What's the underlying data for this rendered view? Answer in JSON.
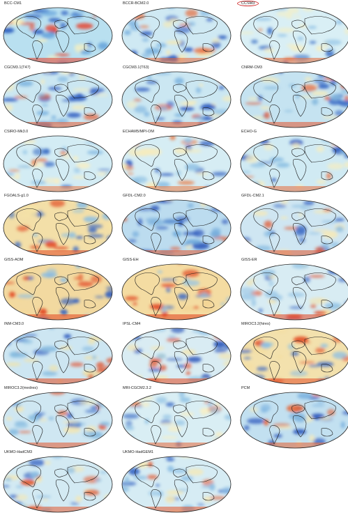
{
  "panels": [
    {
      "label": "BCC-CM1",
      "bg": "#b9e0f0",
      "blobs": [
        [
          "#2d5fc0",
          0.35
        ],
        [
          "#f6efbf",
          0.2
        ],
        [
          "#e8402a",
          0.25
        ],
        [
          "#6aa6dc",
          0.2
        ]
      ]
    },
    {
      "label": "BCCR-BCM2.0",
      "bg": "#cfe9f3",
      "blobs": [
        [
          "#2f5dbf",
          0.3
        ],
        [
          "#f3e9b8",
          0.3
        ],
        [
          "#e86a3a",
          0.15
        ],
        [
          "#7db3e0",
          0.25
        ]
      ]
    },
    {
      "label": "CCSM3",
      "bg": "#d9eff5",
      "blobs": [
        [
          "#3b6fc6",
          0.2
        ],
        [
          "#f5efc4",
          0.4
        ],
        [
          "#e46a38",
          0.1
        ],
        [
          "#93c3e6",
          0.3
        ]
      ],
      "circled": true
    },
    {
      "label": "CGCM3.1(T47)",
      "bg": "#cbe7f2",
      "blobs": [
        [
          "#2e5cbf",
          0.35
        ],
        [
          "#f4ecc0",
          0.25
        ],
        [
          "#e65a30",
          0.1
        ],
        [
          "#7fb5e0",
          0.3
        ]
      ]
    },
    {
      "label": "CGCM3.1(T63)",
      "bg": "#cbe7f2",
      "blobs": [
        [
          "#2e5cbf",
          0.35
        ],
        [
          "#f4ecc0",
          0.25
        ],
        [
          "#e65a30",
          0.1
        ],
        [
          "#7fb5e0",
          0.3
        ]
      ]
    },
    {
      "label": "CNRM-CM3",
      "bg": "#c5e3f1",
      "blobs": [
        [
          "#3768c4",
          0.3
        ],
        [
          "#f4ebbd",
          0.25
        ],
        [
          "#e4552c",
          0.2
        ],
        [
          "#86badf",
          0.25
        ]
      ]
    },
    {
      "label": "CSIRO-Mk3.0",
      "bg": "#d3ecf4",
      "blobs": [
        [
          "#3a6cc5",
          0.25
        ],
        [
          "#f6efc6",
          0.35
        ],
        [
          "#e97a45",
          0.1
        ],
        [
          "#8ec0e4",
          0.3
        ]
      ]
    },
    {
      "label": "ECHAM5/MPI-OM",
      "bg": "#d6edf4",
      "blobs": [
        [
          "#2f5ebf",
          0.25
        ],
        [
          "#f5ecbf",
          0.35
        ],
        [
          "#ea7840",
          0.15
        ],
        [
          "#8fc1e4",
          0.25
        ]
      ]
    },
    {
      "label": "ECHO-G",
      "bg": "#d0eaf3",
      "blobs": [
        [
          "#2c58bc",
          0.3
        ],
        [
          "#f5edc2",
          0.3
        ],
        [
          "#e86c3a",
          0.1
        ],
        [
          "#88bde2",
          0.3
        ]
      ]
    },
    {
      "label": "FGOALS-g1.0",
      "bg": "#f3dfa8",
      "blobs": [
        [
          "#3665c3",
          0.3
        ],
        [
          "#f5e3a6",
          0.25
        ],
        [
          "#e24a25",
          0.25
        ],
        [
          "#8cbfe3",
          0.2
        ]
      ]
    },
    {
      "label": "GFDL-CM2.0",
      "bg": "#bcdcef",
      "blobs": [
        [
          "#2a55b9",
          0.4
        ],
        [
          "#f3e7b5",
          0.15
        ],
        [
          "#e35a2f",
          0.15
        ],
        [
          "#6ea8da",
          0.3
        ]
      ]
    },
    {
      "label": "GFDL-CM2.1",
      "bg": "#cfe6f2",
      "blobs": [
        [
          "#3d6bc5",
          0.3
        ],
        [
          "#f4e9ba",
          0.3
        ],
        [
          "#e2552c",
          0.15
        ],
        [
          "#8dbfe3",
          0.25
        ]
      ]
    },
    {
      "label": "GISS-AOM",
      "bg": "#f2d9a0",
      "blobs": [
        [
          "#2f5ebf",
          0.25
        ],
        [
          "#f4d999",
          0.25
        ],
        [
          "#e2461f",
          0.3
        ],
        [
          "#8cbfe3",
          0.2
        ]
      ]
    },
    {
      "label": "GISS-EH",
      "bg": "#f4dca2",
      "blobs": [
        [
          "#3a68c4",
          0.2
        ],
        [
          "#f3d595",
          0.25
        ],
        [
          "#e0401d",
          0.35
        ],
        [
          "#94c4e5",
          0.2
        ]
      ]
    },
    {
      "label": "GISS-ER",
      "bg": "#d8ecf3",
      "blobs": [
        [
          "#3a68c4",
          0.25
        ],
        [
          "#f5e3a8",
          0.3
        ],
        [
          "#e2461f",
          0.2
        ],
        [
          "#95c4e5",
          0.25
        ]
      ]
    },
    {
      "label": "INM-CM3.0",
      "bg": "#cde6f2",
      "blobs": [
        [
          "#2f5ebf",
          0.3
        ],
        [
          "#f3e3a6",
          0.25
        ],
        [
          "#e34c23",
          0.2
        ],
        [
          "#85badf",
          0.25
        ]
      ]
    },
    {
      "label": "IPSL-CM4",
      "bg": "#d9ecf3",
      "blobs": [
        [
          "#2a55b9",
          0.35
        ],
        [
          "#f5e5ad",
          0.25
        ],
        [
          "#e14a22",
          0.2
        ],
        [
          "#8cbfe3",
          0.2
        ]
      ]
    },
    {
      "label": "MIROC3.2(hires)",
      "bg": "#f3e1ad",
      "blobs": [
        [
          "#3a68c4",
          0.25
        ],
        [
          "#f4dea2",
          0.3
        ],
        [
          "#e3522a",
          0.2
        ],
        [
          "#8cbfe3",
          0.25
        ]
      ]
    },
    {
      "label": "MIROC3.2(medres)",
      "bg": "#cfe7f2",
      "blobs": [
        [
          "#3867c4",
          0.25
        ],
        [
          "#f5e6b0",
          0.3
        ],
        [
          "#e3572d",
          0.15
        ],
        [
          "#86badf",
          0.3
        ]
      ]
    },
    {
      "label": "MRI-CGCM2.3.2",
      "bg": "#d9eef4",
      "blobs": [
        [
          "#3f6fc6",
          0.2
        ],
        [
          "#f6efc7",
          0.4
        ],
        [
          "#e5683a",
          0.1
        ],
        [
          "#97c6e6",
          0.3
        ]
      ]
    },
    {
      "label": "PCM",
      "bg": "#c2e0f0",
      "blobs": [
        [
          "#2d59bd",
          0.35
        ],
        [
          "#f4eabc",
          0.2
        ],
        [
          "#e6602f",
          0.15
        ],
        [
          "#7fb5e0",
          0.3
        ]
      ]
    },
    {
      "label": "UKMO-HadCM3",
      "bg": "#d3eaf3",
      "blobs": [
        [
          "#3563c2",
          0.25
        ],
        [
          "#f5e8b5",
          0.3
        ],
        [
          "#e35a2f",
          0.15
        ],
        [
          "#8dbfe3",
          0.3
        ]
      ]
    },
    {
      "label": "UKMO-HadGEM1",
      "bg": "#d6ecf4",
      "blobs": [
        [
          "#3a68c4",
          0.25
        ],
        [
          "#f5e9b8",
          0.3
        ],
        [
          "#e3582d",
          0.1
        ],
        [
          "#8fc0e4",
          0.35
        ]
      ]
    }
  ]
}
